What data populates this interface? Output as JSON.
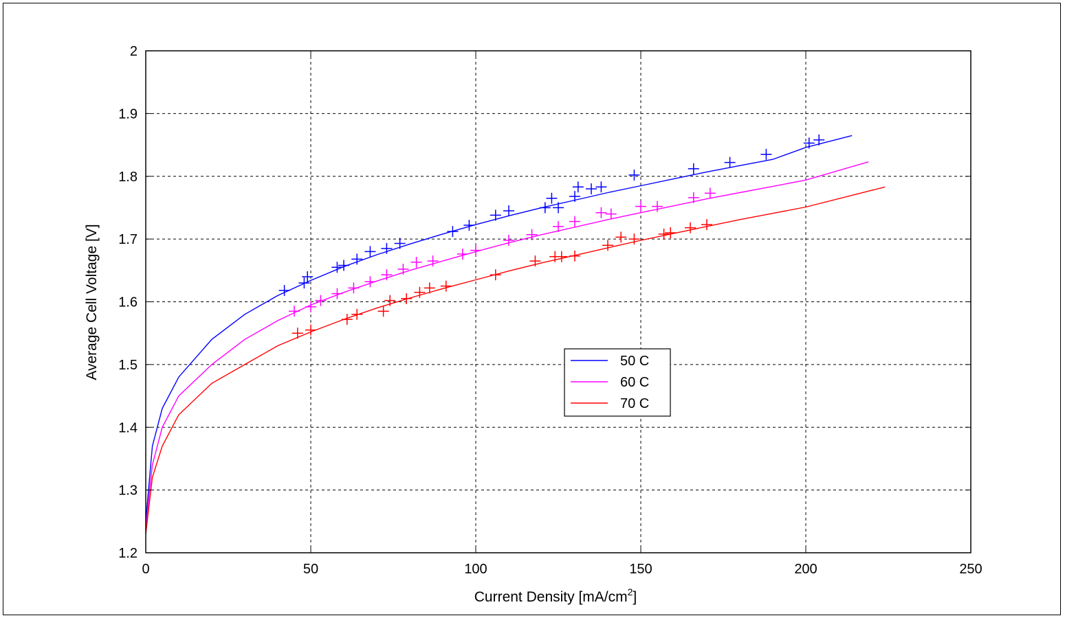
{
  "chart_data": {
    "type": "line",
    "xlabel": "Current Density [mA/cm",
    "xlabel_superscript": "2",
    "xlabel_suffix": "]",
    "ylabel": "Average Cell Voltage [V]",
    "xlim": [
      0,
      250
    ],
    "ylim": [
      1.2,
      2
    ],
    "xticks": [
      0,
      50,
      100,
      150,
      200,
      250
    ],
    "xtick_labels": [
      "0",
      "50",
      "100",
      "150",
      "200",
      "250"
    ],
    "yticks": [
      1.2,
      1.3,
      1.4,
      1.5,
      1.6,
      1.7,
      1.8,
      1.9,
      2.0
    ],
    "ytick_labels": [
      "1.2",
      "1.3",
      "1.4",
      "1.5",
      "1.6",
      "1.7",
      "1.8",
      "1.9",
      "2"
    ],
    "grid": true,
    "legend_position": "center-right",
    "series": [
      {
        "name": "50 C",
        "color": "#0000ff",
        "fit": {
          "x": [
            0,
            2,
            5,
            10,
            20,
            30,
            40,
            50,
            60,
            70,
            80,
            90,
            100,
            110,
            120,
            130,
            140,
            150,
            160,
            170,
            180,
            190,
            200,
            214
          ],
          "y": [
            1.25,
            1.37,
            1.43,
            1.48,
            1.54,
            1.58,
            1.61,
            1.634,
            1.656,
            1.675,
            1.692,
            1.708,
            1.723,
            1.737,
            1.75,
            1.762,
            1.774,
            1.785,
            1.796,
            1.807,
            1.817,
            1.827,
            1.846,
            1.865
          ]
        },
        "markers": {
          "x": [
            42,
            48,
            49,
            58,
            60,
            64,
            68,
            73,
            77,
            93,
            98,
            106,
            110,
            121,
            123,
            125,
            130,
            131,
            135,
            138,
            148,
            166,
            177,
            188,
            201,
            204
          ],
          "y": [
            1.618,
            1.63,
            1.64,
            1.655,
            1.658,
            1.668,
            1.68,
            1.685,
            1.693,
            1.712,
            1.722,
            1.738,
            1.745,
            1.75,
            1.765,
            1.75,
            1.768,
            1.783,
            1.78,
            1.783,
            1.802,
            1.812,
            1.822,
            1.835,
            1.853,
            1.858
          ]
        }
      },
      {
        "name": "60 C",
        "color": "#ff00ff",
        "fit": {
          "x": [
            0,
            2,
            5,
            10,
            20,
            30,
            40,
            50,
            60,
            70,
            80,
            90,
            100,
            110,
            120,
            130,
            140,
            150,
            160,
            170,
            180,
            190,
            200,
            219
          ],
          "y": [
            1.24,
            1.34,
            1.4,
            1.45,
            1.5,
            1.54,
            1.57,
            1.595,
            1.615,
            1.633,
            1.65,
            1.665,
            1.68,
            1.694,
            1.707,
            1.719,
            1.731,
            1.742,
            1.753,
            1.764,
            1.774,
            1.784,
            1.794,
            1.823
          ]
        },
        "markers": {
          "x": [
            45,
            50,
            53,
            58,
            63,
            68,
            73,
            78,
            82,
            87,
            96,
            100,
            110,
            117,
            125,
            130,
            138,
            141,
            150,
            155,
            166,
            171
          ],
          "y": [
            1.585,
            1.592,
            1.602,
            1.613,
            1.622,
            1.632,
            1.643,
            1.652,
            1.663,
            1.665,
            1.676,
            1.682,
            1.698,
            1.707,
            1.72,
            1.728,
            1.742,
            1.74,
            1.752,
            1.752,
            1.766,
            1.773
          ]
        }
      },
      {
        "name": "70 C",
        "color": "#ff0000",
        "fit": {
          "x": [
            0,
            2,
            5,
            10,
            20,
            30,
            40,
            50,
            60,
            70,
            80,
            90,
            100,
            110,
            120,
            130,
            140,
            150,
            160,
            170,
            180,
            190,
            200,
            224
          ],
          "y": [
            1.23,
            1.32,
            1.37,
            1.42,
            1.47,
            1.5,
            1.53,
            1.552,
            1.572,
            1.59,
            1.606,
            1.621,
            1.635,
            1.649,
            1.662,
            1.674,
            1.686,
            1.698,
            1.709,
            1.72,
            1.731,
            1.741,
            1.751,
            1.783
          ]
        },
        "markers": {
          "x": [
            46,
            50,
            61,
            64,
            72,
            74,
            79,
            83,
            86,
            91,
            106,
            118,
            124,
            126,
            130,
            140,
            144,
            148,
            157,
            159,
            165,
            170
          ],
          "y": [
            1.55,
            1.555,
            1.572,
            1.58,
            1.585,
            1.602,
            1.605,
            1.615,
            1.622,
            1.625,
            1.643,
            1.665,
            1.672,
            1.672,
            1.673,
            1.69,
            1.703,
            1.7,
            1.708,
            1.71,
            1.718,
            1.723
          ]
        }
      }
    ]
  }
}
